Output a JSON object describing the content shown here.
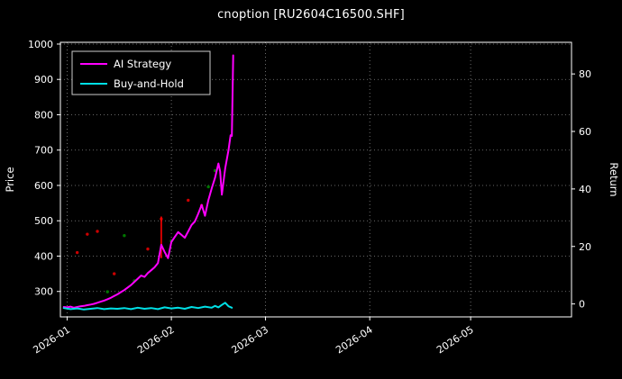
{
  "figure": {
    "background": "#000000",
    "text_color": "#ffffff",
    "grid_color": "#888888"
  },
  "chart_data": {
    "type": "line",
    "title": "cnoption [RU2604C16500.SHF]",
    "legend": {
      "position": "upper-left",
      "entries": [
        "AI Strategy",
        "Buy-and-Hold"
      ]
    },
    "left_axis": {
      "label": "Price",
      "ticks": [
        300,
        400,
        500,
        600,
        700,
        800,
        900,
        1000
      ],
      "ylim": [
        228,
        1005
      ]
    },
    "right_axis": {
      "label": "Return",
      "ticks": [
        0,
        20,
        40,
        60,
        80
      ],
      "ylim": [
        -4.5,
        91
      ]
    },
    "x_axis": {
      "tick_labels": [
        "2026-01",
        "2026-02",
        "2026-03",
        "2026-04",
        "2026-05"
      ],
      "tick_days": [
        0,
        31,
        59,
        90,
        120
      ],
      "xlim_days": [
        -2,
        150
      ],
      "grid": true
    },
    "series": [
      {
        "name": "AI Strategy",
        "color": "#ff00ff",
        "width": 2,
        "points": [
          [
            -1,
            256
          ],
          [
            0,
            255
          ],
          [
            1,
            257
          ],
          [
            2,
            254
          ],
          [
            3,
            256
          ],
          [
            4,
            258
          ],
          [
            5,
            259
          ],
          [
            6,
            261
          ],
          [
            7,
            263
          ],
          [
            8,
            265
          ],
          [
            9,
            268
          ],
          [
            10,
            271
          ],
          [
            11,
            274
          ],
          [
            12,
            278
          ],
          [
            13,
            282
          ],
          [
            14,
            287
          ],
          [
            15,
            292
          ],
          [
            16,
            298
          ],
          [
            17,
            304
          ],
          [
            18,
            311
          ],
          [
            19,
            318
          ],
          [
            20,
            327
          ],
          [
            21,
            336
          ],
          [
            22,
            345
          ],
          [
            23,
            341
          ],
          [
            24,
            352
          ],
          [
            25,
            360
          ],
          [
            26,
            368
          ],
          [
            27,
            380
          ],
          [
            28,
            432
          ],
          [
            29,
            412
          ],
          [
            30,
            394
          ],
          [
            31,
            440
          ],
          [
            32,
            454
          ],
          [
            33,
            468
          ],
          [
            34,
            460
          ],
          [
            35,
            452
          ],
          [
            36,
            470
          ],
          [
            37,
            488
          ],
          [
            38,
            498
          ],
          [
            39,
            520
          ],
          [
            40,
            545
          ],
          [
            41,
            514
          ],
          [
            42,
            558
          ],
          [
            43,
            592
          ],
          [
            44,
            622
          ],
          [
            45,
            662
          ],
          [
            45.5,
            640
          ],
          [
            46,
            574
          ],
          [
            47,
            648
          ],
          [
            48,
            700
          ],
          [
            48.6,
            742
          ],
          [
            49,
            740
          ],
          [
            49.4,
            968
          ]
        ]
      },
      {
        "name": "Buy-and-Hold",
        "color": "#00e0e6",
        "width": 2,
        "points": [
          [
            -1,
            253
          ],
          [
            1,
            250
          ],
          [
            3,
            252
          ],
          [
            5,
            249
          ],
          [
            7,
            251
          ],
          [
            9,
            253
          ],
          [
            11,
            250
          ],
          [
            13,
            252
          ],
          [
            15,
            251
          ],
          [
            17,
            253
          ],
          [
            19,
            250
          ],
          [
            21,
            254
          ],
          [
            23,
            251
          ],
          [
            25,
            253
          ],
          [
            27,
            250
          ],
          [
            29,
            255
          ],
          [
            31,
            252
          ],
          [
            33,
            254
          ],
          [
            35,
            251
          ],
          [
            37,
            256
          ],
          [
            39,
            253
          ],
          [
            41,
            257
          ],
          [
            43,
            254
          ],
          [
            44,
            259
          ],
          [
            45,
            255
          ],
          [
            46,
            262
          ],
          [
            47,
            268
          ],
          [
            48,
            258
          ],
          [
            49,
            254
          ]
        ]
      }
    ],
    "markers": {
      "red_spike": {
        "color": "#ff0000",
        "day": 28,
        "from": 394,
        "to": 512
      },
      "red_dots": {
        "color": "#cc0000",
        "points": [
          [
            3,
            410
          ],
          [
            6,
            462
          ],
          [
            9,
            470
          ],
          [
            14,
            350
          ],
          [
            24,
            420
          ],
          [
            28,
            505
          ],
          [
            36,
            558
          ],
          [
            40,
            543
          ]
        ]
      },
      "green_dots": {
        "color": "#007700",
        "points": [
          [
            12,
            299
          ],
          [
            17,
            458
          ],
          [
            20,
            330
          ],
          [
            31,
            443
          ],
          [
            42,
            596
          ],
          [
            44,
            642
          ]
        ]
      }
    }
  }
}
